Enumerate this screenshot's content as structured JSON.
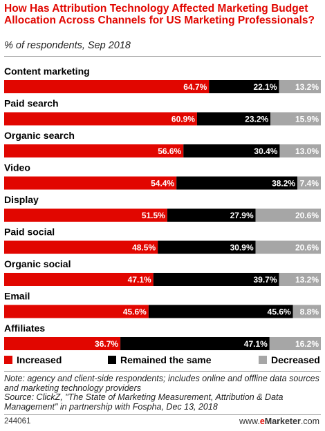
{
  "title": "How Has Attribution Technology Affected Marketing Budget Allocation Across Channels for US Marketing Professionals?",
  "subtitle": "% of respondents, Sep 2018",
  "colors": {
    "increased": "#e10600",
    "same": "#000000",
    "decreased": "#a6a6a6",
    "title": "#e10600"
  },
  "chart_data": {
    "type": "bar",
    "orientation": "horizontal",
    "stacked": true,
    "categories": [
      "Content marketing",
      "Paid search",
      "Organic search",
      "Video",
      "Display",
      "Paid social",
      "Organic social",
      "Email",
      "Affiliates"
    ],
    "series": [
      {
        "name": "Increased",
        "values": [
          64.7,
          60.9,
          56.6,
          54.4,
          51.5,
          48.5,
          47.1,
          45.6,
          36.7
        ]
      },
      {
        "name": "Remained the same",
        "values": [
          22.1,
          23.2,
          30.4,
          38.2,
          27.9,
          30.9,
          39.7,
          45.6,
          47.1
        ]
      },
      {
        "name": "Decreased",
        "values": [
          13.2,
          15.9,
          13.0,
          7.4,
          20.6,
          20.6,
          13.2,
          8.8,
          16.2
        ]
      }
    ],
    "value_suffix": "%",
    "legend_position": "bottom"
  },
  "legend": [
    {
      "label": "Increased",
      "color": "#e10600"
    },
    {
      "label": "Remained the same",
      "color": "#000000"
    },
    {
      "label": "Decreased",
      "color": "#a6a6a6"
    }
  ],
  "note": "Note: agency and client-side respondents; includes online and offline data sources and marketing technology providers",
  "source": "Source: ClickZ, \"The State of Marketing Measurement, Attribution & Data Management\" in partnership with Fospha, Dec 13, 2018",
  "footer": {
    "id": "244061",
    "brand_prefix": "www.",
    "brand_e": "e",
    "brand_rest": "Marketer",
    "brand_suffix": ".com"
  }
}
